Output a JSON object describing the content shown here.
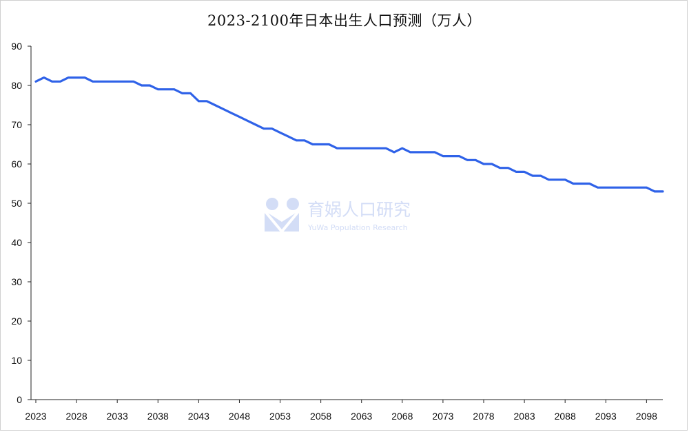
{
  "chart_data": {
    "type": "line",
    "title": "2023-2100年日本出生人口预测（万人）",
    "xlabel": "",
    "ylabel": "",
    "ylim": [
      0,
      90
    ],
    "yticks": [
      0,
      10,
      20,
      30,
      40,
      50,
      60,
      70,
      80,
      90
    ],
    "xticks": [
      "2023",
      "2028",
      "2033",
      "2038",
      "2043",
      "2048",
      "2053",
      "2058",
      "2063",
      "2068",
      "2073",
      "2078",
      "2083",
      "2088",
      "2093",
      "2098"
    ],
    "grid": false,
    "legend": "none",
    "line_color": "#2f62e8",
    "x": [
      2023,
      2024,
      2025,
      2026,
      2027,
      2028,
      2029,
      2030,
      2031,
      2032,
      2033,
      2034,
      2035,
      2036,
      2037,
      2038,
      2039,
      2040,
      2041,
      2042,
      2043,
      2044,
      2045,
      2046,
      2047,
      2048,
      2049,
      2050,
      2051,
      2052,
      2053,
      2054,
      2055,
      2056,
      2057,
      2058,
      2059,
      2060,
      2061,
      2062,
      2063,
      2064,
      2065,
      2066,
      2067,
      2068,
      2069,
      2070,
      2071,
      2072,
      2073,
      2074,
      2075,
      2076,
      2077,
      2078,
      2079,
      2080,
      2081,
      2082,
      2083,
      2084,
      2085,
      2086,
      2087,
      2088,
      2089,
      2090,
      2091,
      2092,
      2093,
      2094,
      2095,
      2096,
      2097,
      2098,
      2099,
      2100
    ],
    "series": [
      {
        "values": [
          81,
          82,
          81,
          81,
          82,
          82,
          82,
          81,
          81,
          81,
          81,
          81,
          81,
          80,
          80,
          79,
          79,
          79,
          78,
          78,
          76,
          76,
          75,
          74,
          73,
          72,
          71,
          70,
          69,
          69,
          68,
          67,
          66,
          66,
          65,
          65,
          65,
          64,
          64,
          64,
          64,
          64,
          64,
          64,
          63,
          64,
          63,
          63,
          63,
          63,
          62,
          62,
          62,
          61,
          61,
          60,
          60,
          59,
          59,
          58,
          58,
          57,
          57,
          56,
          56,
          56,
          55,
          55,
          55,
          54,
          54,
          54,
          54,
          54,
          54,
          54,
          53,
          53
        ]
      }
    ]
  },
  "watermark": {
    "text": "育娲人口研究",
    "subtext": "YuWa Population Research",
    "color": "#9fb4ec"
  }
}
